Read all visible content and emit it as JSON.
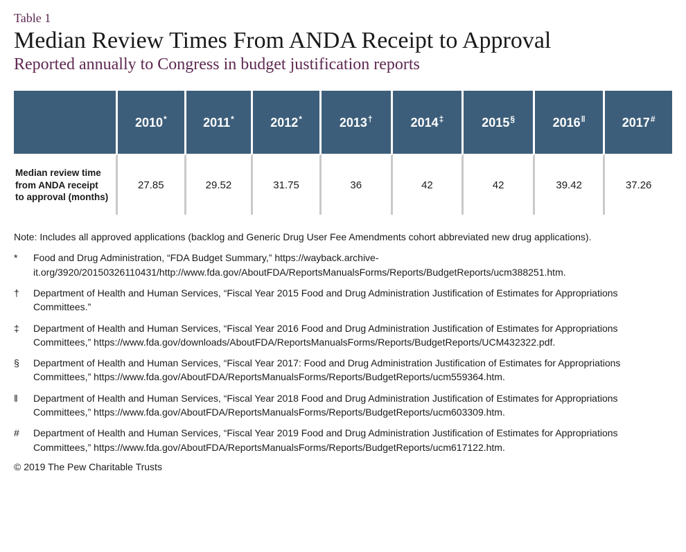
{
  "header": {
    "table_label": "Table 1",
    "title": "Median Review Times From ANDA Receipt to Approval",
    "subtitle": "Reported annually to Congress in budget justification reports"
  },
  "table": {
    "type": "table",
    "header_bg": "#3d5e7a",
    "header_text_color": "#ffffff",
    "cell_divider_color": "#c9c9c9",
    "background_color": "#ffffff",
    "header_fontsize": 18,
    "row_label_fontsize": 13.5,
    "value_fontsize": 15,
    "row_label": "Median review time from ANDA receipt to approval (months)",
    "years": [
      {
        "label": "2010",
        "sup": "*"
      },
      {
        "label": "2011",
        "sup": "*"
      },
      {
        "label": "2012",
        "sup": "*"
      },
      {
        "label": "2013",
        "sup": "†"
      },
      {
        "label": "2014",
        "sup": "‡"
      },
      {
        "label": "2015",
        "sup": "§"
      },
      {
        "label": "2016",
        "sup": "ǁ"
      },
      {
        "label": "2017",
        "sup": "#"
      }
    ],
    "values": [
      "27.85",
      "29.52",
      "31.75",
      "36",
      "42",
      "42",
      "39.42",
      "37.26"
    ]
  },
  "note": "Note: Includes all approved applications (backlog and Generic Drug User Fee Amendments cohort abbreviated new drug applications).",
  "footnotes": [
    {
      "sym": "*",
      "text": "Food and Drug Administration, “FDA Budget Summary,” https://wayback.archive-it.org/3920/20150326110431/http://www.fda.gov/AboutFDA/ReportsManualsForms/Reports/BudgetReports/ucm388251.htm."
    },
    {
      "sym": "†",
      "text": "Department of Health and Human Services, “Fiscal Year 2015 Food and Drug Administration Justification of Estimates for Appropriations Committees.”"
    },
    {
      "sym": "‡",
      "text": "Department of Health and Human Services, “Fiscal Year 2016 Food and Drug Administration Justification of Estimates for Appropriations Committees,” https://www.fda.gov/downloads/AboutFDA/ReportsManualsForms/Reports/BudgetReports/UCM432322.pdf."
    },
    {
      "sym": "§",
      "text": "Department of Health and Human Services, “Fiscal Year 2017: Food and Drug Administration Justification of Estimates for Appropriations Committees,” https://www.fda.gov/AboutFDA/ReportsManualsForms/Reports/BudgetReports/ucm559364.htm."
    },
    {
      "sym": "ǁ",
      "text": "Department of Health and Human Services, “Fiscal Year 2018 Food and Drug Administration Justification of Estimates for Appropriations Committees,” https://www.fda.gov/AboutFDA/ReportsManualsForms/Reports/BudgetReports/ucm603309.htm."
    },
    {
      "sym": "#",
      "text": "Department of Health and Human Services, “Fiscal Year 2019 Food and Drug Administration Justification of Estimates for Appropriations Committees,” https://www.fda.gov/AboutFDA/ReportsManualsForms/Reports/BudgetReports/ucm617122.htm."
    }
  ],
  "copyright": "© 2019 The Pew Charitable Trusts",
  "colors": {
    "brand_purple": "#5e2750",
    "text": "#1a1a1a"
  }
}
